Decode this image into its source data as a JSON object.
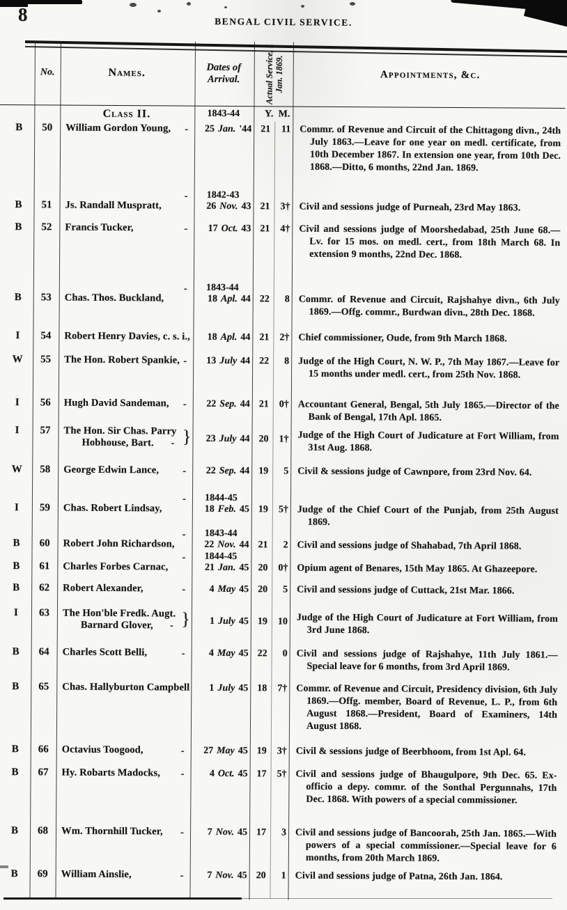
{
  "page": {
    "number": "8",
    "title": "BENGAL CIVIL SERVICE."
  },
  "table": {
    "headers": {
      "no": "No.",
      "names": "Names.",
      "arrival": "Dates of Arrival.",
      "service": "Actual Service, 1 Jan. 1869.",
      "appointments": "Appointments, &c."
    },
    "class_row": {
      "heading": "Class II.",
      "year_label": "1843-44",
      "years_abbr": "Y.",
      "months_abbr": "M."
    },
    "rows": [
      {
        "letter": "B",
        "no": "50",
        "name": "William Gordon Young,",
        "dash": "-",
        "date_d": "25",
        "date_m": "Jan.",
        "date_y": "'44",
        "yrs": "21",
        "mos": "11",
        "appt": "Commr. of Revenue and Circuit of the Chittagong divn., 24th July 1863.—Leave for one year on medl. certificate, from 10th December 1867. In extension one year, from 10th Dec. 1868.—Ditto, 6 months, 22nd Jan. 1869."
      },
      {
        "letter": "B",
        "no": "51",
        "name": "Js. Randall Muspratt,",
        "dash": "-",
        "year_label": "1842-43",
        "date_d": "26",
        "date_m": "Nov.",
        "date_y": "43",
        "yrs": "21",
        "mos": "3†",
        "appt": "Civil and sessions judge of Purneah, 23rd May 1863."
      },
      {
        "letter": "B",
        "no": "52",
        "name": "Francis Tucker,",
        "dash": "-",
        "date_d": "17",
        "date_m": "Oct.",
        "date_y": "43",
        "yrs": "21",
        "mos": "4†",
        "appt": "Civil and sessions judge of Moorshedabad, 25th June 68.—Lv. for 15 mos. on medl. cert., from 18th March 68. In extension 9 months, 22nd Dec. 1868."
      },
      {
        "letter": "B",
        "no": "53",
        "name": "Chas. Thos. Buckland,",
        "dash": "-",
        "year_label": "1843-44",
        "date_d": "18",
        "date_m": "Apl.",
        "date_y": "44",
        "yrs": "22",
        "mos": "8",
        "appt": "Commr. of Revenue and Circuit, Rajshahye divn., 6th July 1869.—Offg. commr., Burdwan divn., 28th Dec. 1868."
      },
      {
        "letter": "I",
        "no": "54",
        "name": "Robert Henry Davies, c. s. i.,",
        "date_d": "18",
        "date_m": "Apl.",
        "date_y": "44",
        "yrs": "21",
        "mos": "2†",
        "appt": "Chief commissioner, Oude, from 9th March 1868."
      },
      {
        "letter": "W",
        "no": "55",
        "name": "The Hon. Robert Spankie,",
        "dash": "-",
        "date_d": "13",
        "date_m": "July",
        "date_y": "44",
        "yrs": "22",
        "mos": "8",
        "appt": "Judge of the High Court, N. W. P., 7th May 1867.—Leave for 15 months under medl. cert., from 25th Nov. 1868."
      },
      {
        "letter": "I",
        "no": "56",
        "name": "Hugh David Sandeman,",
        "dash": "-",
        "date_d": "22",
        "date_m": "Sep.",
        "date_y": "44",
        "yrs": "21",
        "mos": "0†",
        "appt": "Accountant General, Bengal, 5th July 1865.—Director of the Bank of Bengal, 17th Apl. 1865."
      },
      {
        "letter": "I",
        "no": "57",
        "name": "The Hon. Sir Chas. Parry",
        "name2": "Hobhouse, Bart.",
        "brace": "}",
        "dash": "-",
        "date_d": "23",
        "date_m": "July",
        "date_y": "44",
        "yrs": "20",
        "mos": "1†",
        "appt": "Judge of the High Court of Judicature at Fort William, from 31st Aug. 1868."
      },
      {
        "letter": "W",
        "no": "58",
        "name": "George Edwin Lance,",
        "dash": "-",
        "date_d": "22",
        "date_m": "Sep.",
        "date_y": "44",
        "yrs": "19",
        "mos": "5",
        "appt": "Civil & sessions judge of Cawnpore, from 23rd Nov. 64."
      },
      {
        "letter": "I",
        "no": "59",
        "name": "Chas. Robert Lindsay,",
        "dash": "-",
        "year_label": "1844-45",
        "date_d": "18",
        "date_m": "Feb.",
        "date_y": "45",
        "yrs": "19",
        "mos": "5†",
        "appt": "Judge of the Chief Court of the Punjab, from 25th August 1869."
      },
      {
        "letter": "B",
        "no": "60",
        "name": "Robert John Richardson,",
        "dash": "-",
        "year_label": "1843-44",
        "date_d": "22",
        "date_m": "Nov.",
        "date_y": "44",
        "yrs": "21",
        "mos": "2",
        "appt": "Civil and sessions judge of Shahabad, 7th April 1868."
      },
      {
        "letter": "B",
        "no": "61",
        "name": "Charles Forbes Carnac,",
        "dash": "-",
        "year_label": "1844-45",
        "date_d": "21",
        "date_m": "Jan.",
        "date_y": "45",
        "yrs": "20",
        "mos": "0†",
        "appt": "Opium agent of Benares, 15th May 1865. At Ghazeepore."
      },
      {
        "letter": "B",
        "no": "62",
        "name": "Robert Alexander,",
        "dash": "-",
        "date_d": "4",
        "date_m": "May",
        "date_y": "45",
        "yrs": "20",
        "mos": "5",
        "appt": "Civil and sessions judge of Cuttack, 21st Mar. 1866."
      },
      {
        "letter": "I",
        "no": "63",
        "name": "The Hon'ble Fredk. Augt.",
        "name2": "Barnard Glover,",
        "brace": "}",
        "dash": "-",
        "date_d": "1",
        "date_m": "July",
        "date_y": "45",
        "yrs": "19",
        "mos": "10",
        "appt": "Judge of the High Court of Judicature at Fort William, from 3rd June 1868."
      },
      {
        "letter": "B",
        "no": "64",
        "name": "Charles Scott Belli,",
        "dash": "-",
        "date_d": "4",
        "date_m": "May",
        "date_y": "45",
        "yrs": "22",
        "mos": "0",
        "appt": "Civil and sessions judge of Rajshahye, 11th July 1861.—Special leave for 6 months, from 3rd April 1869."
      },
      {
        "letter": "B",
        "no": "65",
        "name": "Chas. Hallyburton Campbell",
        "date_d": "1",
        "date_m": "July",
        "date_y": "45",
        "yrs": "18",
        "mos": "7†",
        "appt": "Commr. of Revenue and Circuit, Presidency division, 6th July 1869.—Offg. member, Board of Revenue, L. P., from 6th August 1868.—President, Board of Examiners, 14th August 1868."
      },
      {
        "letter": "B",
        "no": "66",
        "name": "Octavius Toogood,",
        "dash": "-",
        "date_d": "27",
        "date_m": "May",
        "date_y": "45",
        "yrs": "19",
        "mos": "3†",
        "appt": "Civil & sessions judge of Beerbhoom, from 1st Apl. 64."
      },
      {
        "letter": "B",
        "no": "67",
        "name": "Hy. Robarts Madocks,",
        "dash": "-",
        "date_d": "4",
        "date_m": "Oct.",
        "date_y": "45",
        "yrs": "17",
        "mos": "5†",
        "appt": "Civil and sessions judge of Bhaugulpore, 9th Dec. 65. Ex-officio a depy. commr. of the Sonthal Pergunnahs, 17th Dec. 1868. With powers of a special commissioner."
      },
      {
        "letter": "B",
        "no": "68",
        "name": "Wm. Thornhill Tucker,",
        "dash": "-",
        "date_d": "7",
        "date_m": "Nov.",
        "date_y": "45",
        "yrs": "17",
        "mos": "3",
        "appt": "Civil and sessions judge of Bancoorah, 25th Jan. 1865.—With powers of a special commissioner.—Special leave for 6 months, from 20th March 1869."
      },
      {
        "letter": "B",
        "no": "69",
        "name": "William Ainslie,",
        "dash": "-",
        "date_d": "7",
        "date_m": "Nov.",
        "date_y": "45",
        "yrs": "20",
        "mos": "1",
        "appt": "Civil and sessions judge of Patna, 26th Jan. 1864."
      }
    ]
  }
}
